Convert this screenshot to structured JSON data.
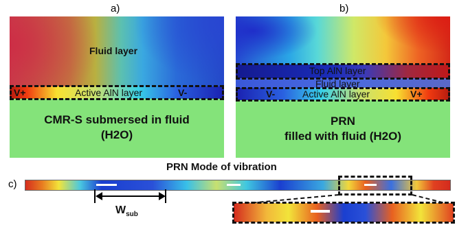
{
  "panel_a": {
    "label": "a)",
    "fluid_layer": "Fluid layer",
    "active_layer": "Active AlN layer",
    "v_plus": "V+",
    "v_minus": "V-",
    "substrate_text_1": "CMR-S submersed in fluid",
    "substrate_text_2": "(H2O)"
  },
  "panel_b": {
    "label": "b)",
    "top_layer": "Top AlN layer",
    "fluid_layer": "Fluid layer",
    "active_layer": "Active AlN layer",
    "v_minus": "V-",
    "v_plus": "V+",
    "substrate_text_1": "PRN",
    "substrate_text_2": "filled with fluid (H2O)"
  },
  "panel_c": {
    "label": "c)",
    "title": "PRN Mode of vibration",
    "wsub_main": "W",
    "wsub_sub": "sub"
  },
  "colors": {
    "substrate": "#84e37a",
    "field_red": "#d42a1e",
    "field_blue": "#1a3fd0",
    "field_cyan": "#2ec6e0",
    "field_yellow": "#f2e43a"
  }
}
